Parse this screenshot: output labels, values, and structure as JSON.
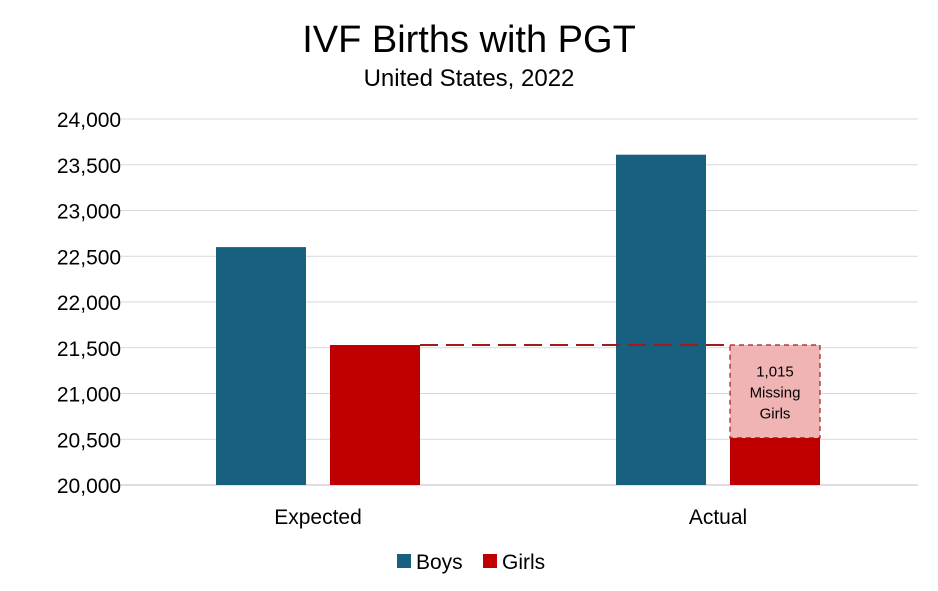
{
  "chart_data": {
    "type": "bar",
    "title": "IVF Births with PGT",
    "subtitle": "United States, 2022",
    "categories": [
      "Expected",
      "Actual"
    ],
    "series": [
      {
        "name": "Boys",
        "color": "#17607f",
        "values": [
          22600,
          23610
        ]
      },
      {
        "name": "Girls",
        "color": "#c00000",
        "values": [
          21530,
          20515
        ]
      }
    ],
    "ylim": [
      20000,
      24000
    ],
    "yticks": [
      20000,
      20500,
      21000,
      21500,
      22000,
      22500,
      23000,
      23500,
      24000
    ],
    "ytick_labels": [
      "20,000",
      "20,500",
      "21,000",
      "21,500",
      "22,000",
      "22,500",
      "23,000",
      "23,500",
      "24,000"
    ],
    "grid": true,
    "legend_position": "bottom",
    "annotation": {
      "category": "Actual",
      "from": 20515,
      "to": 21530,
      "fill": "#f0b4b4",
      "lines": [
        "1,015",
        "Missing",
        "Girls"
      ]
    },
    "reference_line": {
      "value": 21530,
      "from_category": "Expected",
      "to_category": "Actual",
      "style": "dashed",
      "color": "#a31919"
    }
  }
}
